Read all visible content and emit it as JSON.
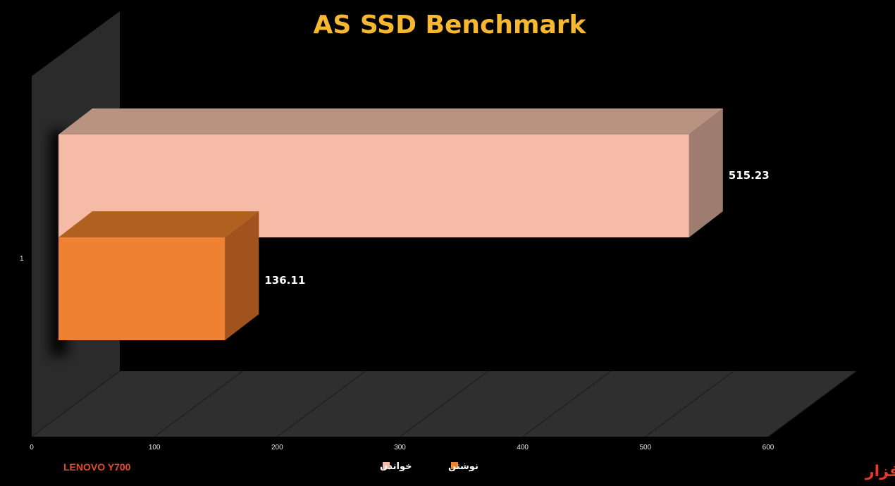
{
  "logo_text": "سخت افزار",
  "device_label": "LENOVO Y700",
  "colors": {
    "title": "#F5B82E",
    "read_front": "#F6BBA6",
    "read_top": "#B99282",
    "read_side": "#9E7D70",
    "write_front": "#EE8232",
    "write_top": "#B0601F",
    "write_side": "#A0531C",
    "wall": "#2B2B2B",
    "floor": "#2F2F2F",
    "device_label": "#E8492B"
  },
  "chart_data": {
    "type": "bar",
    "orientation": "horizontal",
    "three_d": true,
    "title": "AS SSD Benchmark",
    "categories": [
      "1"
    ],
    "series": [
      {
        "name": "خواندن",
        "values": [
          515.23
        ],
        "color": "#F6BBA6"
      },
      {
        "name": "نوشتن",
        "values": [
          136.11
        ],
        "color": "#EE8232"
      }
    ],
    "data_labels": [
      "515.23",
      "136.11"
    ],
    "xlim": [
      0,
      600
    ],
    "x_ticks": [
      "0",
      "100",
      "200",
      "300",
      "400",
      "500",
      "600"
    ],
    "grid": true,
    "legend_placement": "bottom"
  }
}
